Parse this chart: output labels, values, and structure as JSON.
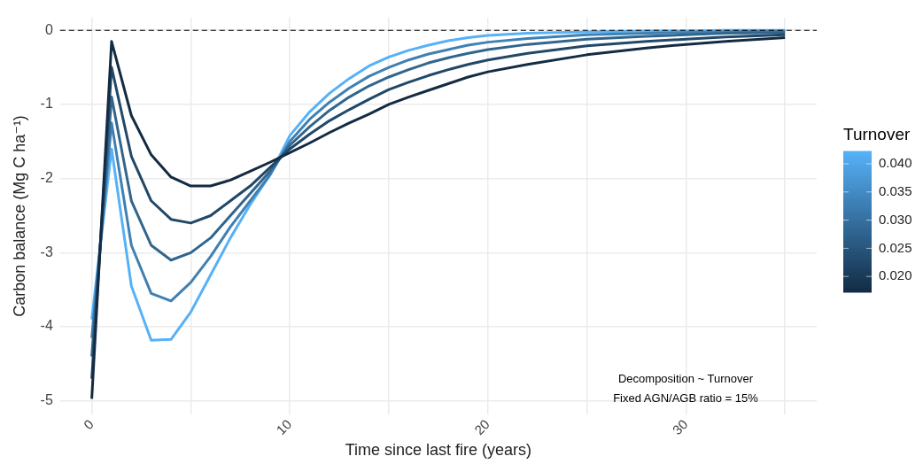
{
  "chart_data": {
    "type": "line",
    "xlabel": "Time since last fire (years)",
    "ylabel": "Carbon balance (Mg C ha⁻¹)",
    "x": [
      0,
      1,
      2,
      3,
      4,
      5,
      6,
      7,
      8,
      9,
      10,
      11,
      12,
      13,
      14,
      15,
      16,
      17,
      18,
      19,
      20,
      22,
      25,
      28,
      30,
      32,
      35
    ],
    "series": [
      {
        "color": "#132b43",
        "values": [
          -4.97,
          -0.15,
          -1.15,
          -1.68,
          -1.98,
          -2.1,
          -2.1,
          -2.02,
          -1.9,
          -1.78,
          -1.65,
          -1.52,
          -1.38,
          -1.25,
          -1.13,
          -1.0,
          -0.9,
          -0.81,
          -0.72,
          -0.63,
          -0.56,
          -0.46,
          -0.33,
          -0.24,
          -0.19,
          -0.15,
          -0.1
        ]
      },
      {
        "color": "#224868",
        "values": [
          -4.7,
          -0.5,
          -1.7,
          -2.3,
          -2.55,
          -2.6,
          -2.5,
          -2.3,
          -2.1,
          -1.85,
          -1.6,
          -1.4,
          -1.22,
          -1.07,
          -0.93,
          -0.8,
          -0.7,
          -0.61,
          -0.53,
          -0.46,
          -0.4,
          -0.31,
          -0.21,
          -0.15,
          -0.12,
          -0.09,
          -0.06
        ]
      },
      {
        "color": "#31658d",
        "values": [
          -4.4,
          -0.9,
          -2.3,
          -2.9,
          -3.1,
          -3.0,
          -2.8,
          -2.5,
          -2.2,
          -1.9,
          -1.55,
          -1.3,
          -1.08,
          -0.9,
          -0.75,
          -0.63,
          -0.53,
          -0.44,
          -0.37,
          -0.31,
          -0.26,
          -0.19,
          -0.12,
          -0.08,
          -0.06,
          -0.04,
          -0.03
        ]
      },
      {
        "color": "#4080b2",
        "values": [
          -4.15,
          -1.25,
          -2.9,
          -3.55,
          -3.65,
          -3.4,
          -3.05,
          -2.65,
          -2.3,
          -1.95,
          -1.5,
          -1.2,
          -0.97,
          -0.78,
          -0.62,
          -0.5,
          -0.4,
          -0.32,
          -0.26,
          -0.2,
          -0.16,
          -0.11,
          -0.06,
          -0.04,
          -0.03,
          -0.02,
          -0.01
        ]
      },
      {
        "color": "#56b1f7",
        "values": [
          -3.9,
          -1.6,
          -3.45,
          -4.18,
          -4.17,
          -3.8,
          -3.3,
          -2.8,
          -2.35,
          -1.95,
          -1.42,
          -1.1,
          -0.85,
          -0.65,
          -0.48,
          -0.36,
          -0.27,
          -0.2,
          -0.14,
          -0.1,
          -0.07,
          -0.04,
          -0.02,
          -0.01,
          -0.01,
          0,
          0
        ]
      }
    ],
    "xlim": [
      -1.6,
      36.6
    ],
    "xticks": [
      0,
      {
        "value": 5,
        "label": null
      },
      10,
      {
        "value": 15,
        "label": null
      },
      20,
      {
        "value": 25,
        "label": null
      },
      30,
      {
        "value": 35,
        "label": null
      }
    ],
    "ylim": [
      -5.18,
      0.17
    ],
    "yticks": [
      -5,
      -4,
      -3,
      -2,
      -1,
      0
    ],
    "grid": true,
    "legend": false,
    "ref_lines": [
      {
        "axis": "y",
        "value": 0,
        "line_style": "dashed",
        "color": "#000000"
      }
    ],
    "clabel": "Turnover",
    "clim": [
      0.0172,
      0.0422
    ],
    "cticks": [
      {
        "value": 0.02,
        "label": "0.020"
      },
      0.025,
      {
        "value": 0.03,
        "label": "0.030"
      },
      0.035,
      {
        "value": 0.04,
        "label": "0.040"
      }
    ],
    "annotations": [
      "Decomposition ~ Turnover",
      "Fixed AGN/AGB ratio = 15%"
    ]
  }
}
